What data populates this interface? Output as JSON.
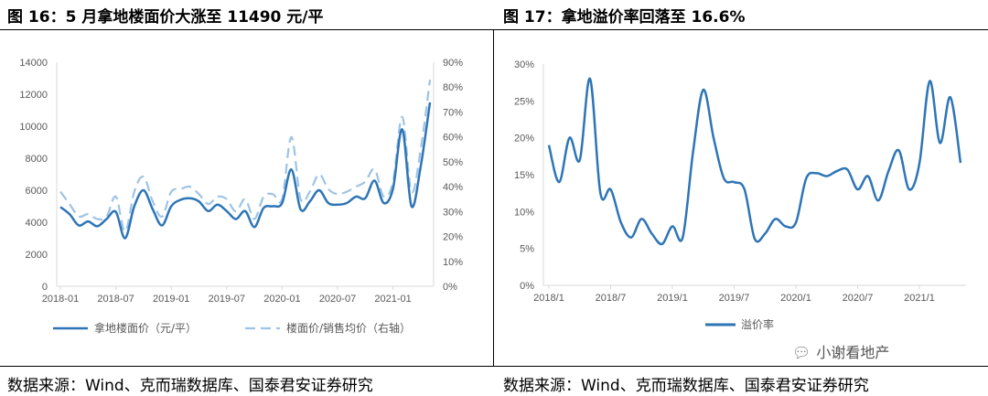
{
  "left_panel": {
    "title": "图 16：5 月拿地楼面价大涨至 11490 元/平",
    "source": "数据来源：Wind、克而瑞数据库、国泰君安证券研究"
  },
  "right_panel": {
    "title": "图 17：拿地溢价率回落至 16.6%",
    "source": "数据来源：Wind、克而瑞数据库、国泰君安证券研究"
  },
  "watermark": {
    "text": "小谢看地产",
    "icon": "wechat-icon"
  },
  "colors": {
    "dark_blue": "#2e75b6",
    "light_blue": "#9dc3e6",
    "axis": "#d9d9d9",
    "tick_text": "#595959"
  },
  "chart_data": [
    {
      "type": "line",
      "x_tick_labels": [
        "2018-01",
        "2018-07",
        "2019-01",
        "2019-07",
        "2020-01",
        "2020-07",
        "2021-01"
      ],
      "y_left_ticks": [
        "0",
        "2000",
        "4000",
        "6000",
        "8000",
        "10000",
        "12000",
        "14000"
      ],
      "y_right_ticks": [
        "0%",
        "10%",
        "20%",
        "30%",
        "40%",
        "50%",
        "60%",
        "70%",
        "80%",
        "90%"
      ],
      "ylim_left": [
        0,
        14000
      ],
      "ylim_right": [
        0,
        0.9
      ],
      "x_start": "2018-01",
      "x_end": "2021-05",
      "legend_position": "bottom",
      "grid": false,
      "series": [
        {
          "name": "拿地楼面价（元/平）",
          "axis": "left",
          "style": "solid",
          "values": [
            4950,
            4500,
            3800,
            4050,
            3750,
            4200,
            4650,
            3000,
            5000,
            6000,
            4800,
            3800,
            5000,
            5400,
            5500,
            5300,
            4700,
            5100,
            4700,
            4200,
            4700,
            3700,
            4900,
            5000,
            5200,
            7300,
            4800,
            5300,
            6000,
            5200,
            5100,
            5200,
            5600,
            5500,
            6600,
            5200,
            6100,
            9800,
            5000,
            7500,
            11490
          ]
        },
        {
          "name": "楼面价/销售均价（右轴）",
          "axis": "right",
          "style": "dashed",
          "values": [
            0.38,
            0.33,
            0.28,
            0.29,
            0.27,
            0.28,
            0.36,
            0.22,
            0.38,
            0.44,
            0.34,
            0.28,
            0.38,
            0.39,
            0.4,
            0.37,
            0.33,
            0.36,
            0.35,
            0.3,
            0.35,
            0.27,
            0.36,
            0.37,
            0.35,
            0.6,
            0.35,
            0.38,
            0.45,
            0.39,
            0.37,
            0.38,
            0.4,
            0.42,
            0.47,
            0.36,
            0.42,
            0.68,
            0.38,
            0.55,
            0.83
          ]
        }
      ]
    },
    {
      "type": "line",
      "x_tick_labels": [
        "2018/1",
        "2018/7",
        "2019/1",
        "2019/7",
        "2020/1",
        "2020/7",
        "2021/1"
      ],
      "y_ticks": [
        "0%",
        "5%",
        "10%",
        "15%",
        "20%",
        "25%",
        "30%"
      ],
      "ylim": [
        0,
        0.3
      ],
      "x_start": "2018-01",
      "x_end": "2021-05",
      "legend_position": "bottom",
      "grid": false,
      "series": [
        {
          "name": "溢价率",
          "style": "solid",
          "values": [
            0.19,
            0.14,
            0.2,
            0.17,
            0.28,
            0.125,
            0.13,
            0.085,
            0.065,
            0.09,
            0.07,
            0.056,
            0.08,
            0.065,
            0.18,
            0.265,
            0.2,
            0.145,
            0.14,
            0.13,
            0.063,
            0.07,
            0.09,
            0.08,
            0.085,
            0.145,
            0.152,
            0.148,
            0.155,
            0.157,
            0.13,
            0.148,
            0.115,
            0.155,
            0.183,
            0.13,
            0.165,
            0.277,
            0.193,
            0.255,
            0.166
          ]
        }
      ]
    }
  ]
}
